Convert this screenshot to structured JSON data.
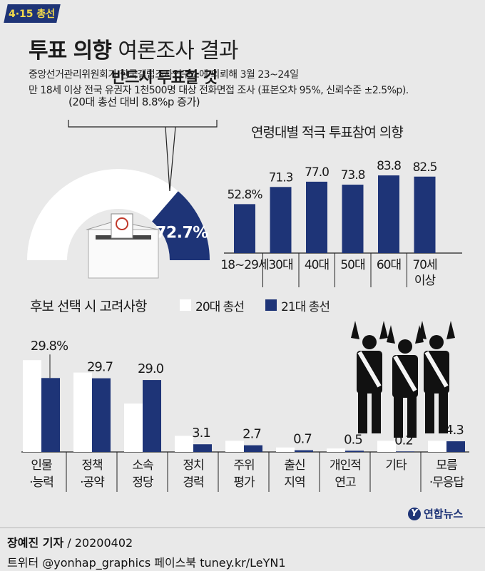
{
  "badge": "4·15 총선",
  "title": {
    "bold": "투표 의향",
    "light": "여론조사 결과"
  },
  "description": [
    "중앙선거관리위원회가 한국갤럽조사연구소에 의뢰해 3월 23~24일",
    "만 18세 이상 전국 유권자 1천500명 대상 전화면접 조사 (표본오차 95%, 신뢰수준 ±2.5%p)."
  ],
  "colors": {
    "navy": "#1e3477",
    "white": "#ffffff",
    "background": "#e9e9e9"
  },
  "chart_data": [
    {
      "type": "pie",
      "subtype": "half-gauge",
      "title": "반드시 투표할 것",
      "subtitle": "(20대 총선 대비 8.8%p 증가)",
      "value": 72.7,
      "value_label": "72.7%",
      "icon": "ballot-box-icon"
    },
    {
      "type": "bar",
      "title": "연령대별 적극 투표참여 의향",
      "categories": [
        "18~29세",
        "30대",
        "40대",
        "50대",
        "60대",
        "70세 이상"
      ],
      "values": [
        52.8,
        71.3,
        77.0,
        73.8,
        83.8,
        82.5
      ],
      "labels": [
        "52.8%",
        "71.3",
        "77.0",
        "73.8",
        "83.8",
        "82.5"
      ],
      "ylim": [
        0,
        100
      ]
    },
    {
      "type": "bar",
      "title": "후보 선택 시 고려사항",
      "categories": [
        "인물·능력",
        "정책·공약",
        "소속 정당",
        "정치 경력",
        "주위 평가",
        "출신 지역",
        "개인적 연고",
        "기타",
        "모름·무응답"
      ],
      "series": [
        {
          "name": "20대 총선",
          "values": [
            37.0,
            32.0,
            19.5,
            6.5,
            4.5,
            1.8,
            1.4,
            4.5,
            4.5
          ]
        },
        {
          "name": "21대 총선",
          "values": [
            29.8,
            29.7,
            29.0,
            3.1,
            2.7,
            0.7,
            0.5,
            0.2,
            4.3
          ]
        }
      ],
      "labels_21": [
        "29.8%",
        "29.7",
        "29.0",
        "3.1",
        "2.7",
        "0.7",
        "0.5",
        "0.2",
        "4.3"
      ],
      "ylim": [
        0,
        40
      ],
      "legend_position": "top",
      "decoration": "candidates-silhouette-icon"
    }
  ],
  "footer": {
    "reporter": "장예진 기자",
    "date": "/ 20200402",
    "sns": "트위터 @yonhap_graphics  페이스북 tuney.kr/LeYN1",
    "logo": "연합뉴스",
    "logo_mark": "Y"
  }
}
